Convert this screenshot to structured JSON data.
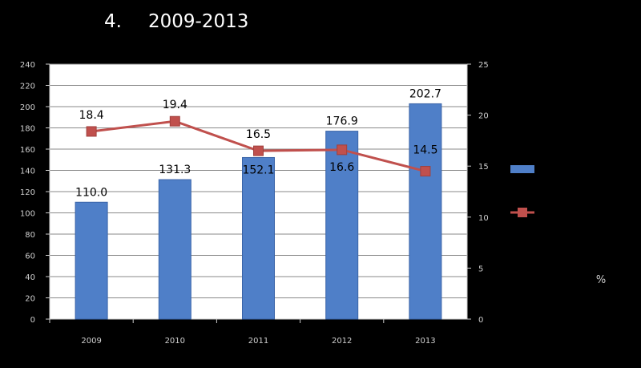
{
  "title": {
    "prefix": "4.",
    "text": "2009-2013"
  },
  "unit_label": "%",
  "chart_data": {
    "type": "bar",
    "categories": [
      "2009",
      "2010",
      "2011",
      "2012",
      "2013"
    ],
    "series": [
      {
        "type": "bar",
        "axis": "left",
        "color": "#4f7fc8",
        "values": [
          110.0,
          131.3,
          152.1,
          176.9,
          202.7
        ]
      },
      {
        "type": "line",
        "axis": "right",
        "color": "#c0504d",
        "values": [
          18.4,
          19.4,
          16.5,
          16.6,
          14.5
        ]
      }
    ],
    "y_left": {
      "min": 0,
      "max": 240,
      "ticks": [
        "0",
        "20",
        "40",
        "60",
        "80",
        "100",
        "120",
        "140",
        "160",
        "180",
        "200",
        "220",
        "240"
      ]
    },
    "y_right": {
      "min": 0,
      "max": 25,
      "ticks": [
        "0",
        "5",
        "10",
        "15",
        "20",
        "25"
      ]
    },
    "grid": true,
    "legend_position": "right"
  }
}
